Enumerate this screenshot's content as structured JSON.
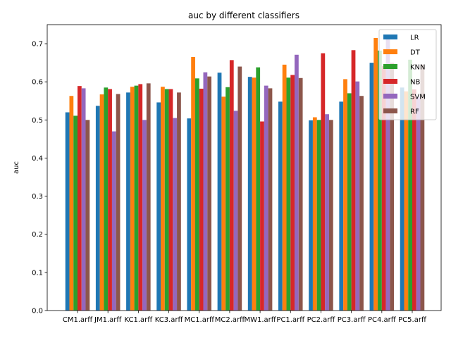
{
  "chart_data": {
    "type": "bar",
    "title": "auc by different classifiers",
    "xlabel": "",
    "ylabel": "auc",
    "ylim": [
      0,
      0.75
    ],
    "yticks": [
      0.0,
      0.1,
      0.2,
      0.3,
      0.4,
      0.5,
      0.6,
      0.7
    ],
    "grid": false,
    "legend_position": "top-right",
    "categories": [
      "CM1.arff",
      "JM1.arff",
      "KC1.arff",
      "KC3.arff",
      "MC1.arff",
      "MC2.arff",
      "MW1.arff",
      "PC1.arff",
      "PC2.arff",
      "PC3.arff",
      "PC4.arff",
      "PC5.arff"
    ],
    "series": [
      {
        "name": "LR",
        "color": "#1f77b4",
        "values": [
          0.52,
          0.537,
          0.572,
          0.546,
          0.504,
          0.624,
          0.613,
          0.548,
          0.499,
          0.548,
          0.65,
          0.585
        ]
      },
      {
        "name": "DT",
        "color": "#ff7f0e",
        "values": [
          0.563,
          0.567,
          0.587,
          0.587,
          0.665,
          0.561,
          0.611,
          0.645,
          0.507,
          0.607,
          0.715,
          0.575
        ]
      },
      {
        "name": "KNN",
        "color": "#2ca02c",
        "values": [
          0.511,
          0.585,
          0.59,
          0.581,
          0.609,
          0.586,
          0.638,
          0.611,
          0.5,
          0.57,
          0.682,
          0.658
        ]
      },
      {
        "name": "NB",
        "color": "#d62728",
        "values": [
          0.589,
          0.581,
          0.594,
          0.581,
          0.582,
          0.657,
          0.496,
          0.618,
          0.675,
          0.683,
          0.641,
          0.58
        ]
      },
      {
        "name": "SVM",
        "color": "#9467bd",
        "values": [
          0.583,
          0.47,
          0.5,
          0.505,
          0.625,
          0.524,
          0.59,
          0.671,
          0.515,
          0.601,
          0.713,
          0.56
        ]
      },
      {
        "name": "RF",
        "color": "#8c564b",
        "values": [
          0.5,
          0.568,
          0.596,
          0.572,
          0.614,
          0.64,
          0.583,
          0.61,
          0.5,
          0.563,
          0.65,
          0.645
        ]
      }
    ]
  }
}
